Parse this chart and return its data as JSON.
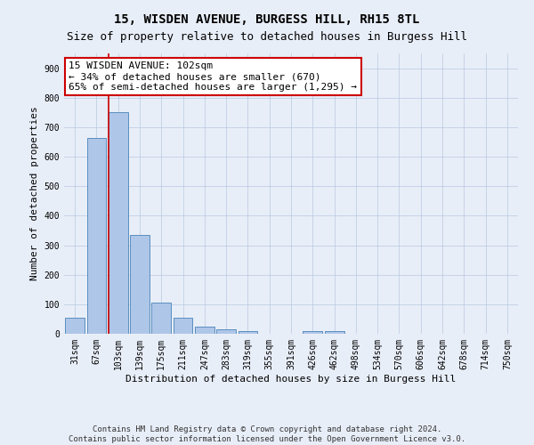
{
  "title": "15, WISDEN AVENUE, BURGESS HILL, RH15 8TL",
  "subtitle": "Size of property relative to detached houses in Burgess Hill",
  "xlabel": "Distribution of detached houses by size in Burgess Hill",
  "ylabel": "Number of detached properties",
  "bin_labels": [
    "31sqm",
    "67sqm",
    "103sqm",
    "139sqm",
    "175sqm",
    "211sqm",
    "247sqm",
    "283sqm",
    "319sqm",
    "355sqm",
    "391sqm",
    "426sqm",
    "462sqm",
    "498sqm",
    "534sqm",
    "570sqm",
    "606sqm",
    "642sqm",
    "678sqm",
    "714sqm",
    "750sqm"
  ],
  "bar_heights": [
    55,
    665,
    750,
    335,
    105,
    55,
    25,
    15,
    10,
    0,
    0,
    10,
    10,
    0,
    0,
    0,
    0,
    0,
    0,
    0,
    0
  ],
  "bar_color": "#aec6e8",
  "bar_edge_color": "#5a8fbf",
  "property_line_bin": 2,
  "property_line_color": "#cc0000",
  "annotation_text": "15 WISDEN AVENUE: 102sqm\n← 34% of detached houses are smaller (670)\n65% of semi-detached houses are larger (1,295) →",
  "annotation_box_color": "#ffffff",
  "annotation_box_edge_color": "#cc0000",
  "ylim": [
    0,
    950
  ],
  "yticks": [
    0,
    100,
    200,
    300,
    400,
    500,
    600,
    700,
    800,
    900
  ],
  "background_color": "#e8eef8",
  "footer_line1": "Contains HM Land Registry data © Crown copyright and database right 2024.",
  "footer_line2": "Contains public sector information licensed under the Open Government Licence v3.0.",
  "title_fontsize": 10,
  "subtitle_fontsize": 9,
  "axis_label_fontsize": 8,
  "tick_fontsize": 7,
  "annotation_fontsize": 8,
  "footer_fontsize": 6.5
}
